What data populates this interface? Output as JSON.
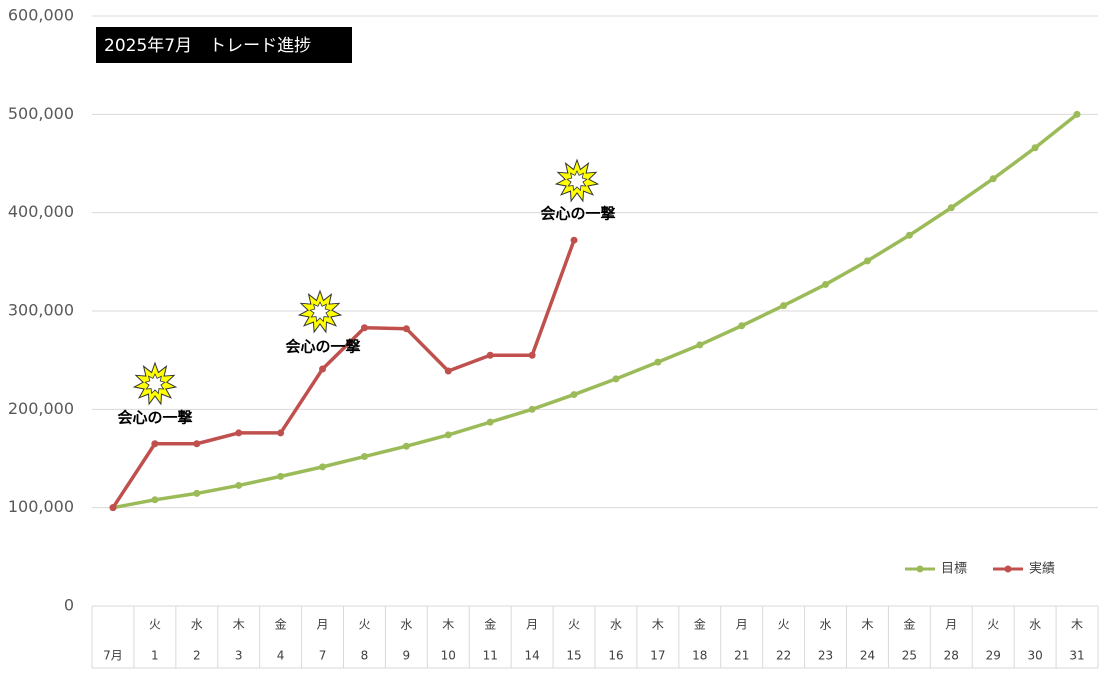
{
  "chart_data": {
    "type": "line",
    "title": "2025年7月　トレード進捗",
    "weekdays": [
      null,
      "火",
      "水",
      "木",
      "金",
      "月",
      "火",
      "水",
      "木",
      "金",
      "月",
      "火",
      "水",
      "木",
      "金",
      "月",
      "火",
      "水",
      "木",
      "金",
      "月",
      "火",
      "水",
      "木"
    ],
    "categories": [
      "7月",
      "1",
      "2",
      "3",
      "4",
      "7",
      "8",
      "9",
      "10",
      "11",
      "14",
      "15",
      "16",
      "17",
      "18",
      "21",
      "22",
      "23",
      "24",
      "25",
      "28",
      "29",
      "30",
      "31"
    ],
    "series": [
      {
        "name": "目標",
        "color": "#9bbb59",
        "values": [
          100000,
          108000,
          114500,
          122600,
          131800,
          141500,
          152000,
          162500,
          174000,
          187000,
          200000,
          215000,
          231000,
          248000,
          265500,
          285000,
          305500,
          327000,
          351000,
          377000,
          405000,
          434500,
          466000,
          500000
        ]
      },
      {
        "name": "実績",
        "color": "#c0504d",
        "values": [
          100000,
          165000,
          165000,
          176000,
          176000,
          241000,
          283000,
          282000,
          239000,
          255000,
          255000,
          372000,
          null,
          null,
          null,
          null,
          null,
          null,
          null,
          null,
          null,
          null,
          null,
          null
        ]
      }
    ],
    "annotations": [
      "会心の一撃",
      "会心の一撃",
      "会心の一撃"
    ],
    "ylim": [
      0,
      600000
    ],
    "yticks": [
      0,
      {
        "value": 100000,
        "label": "100,000"
      },
      {
        "value": 200000,
        "label": "200,000"
      },
      {
        "value": 300000,
        "label": "300,000"
      },
      {
        "value": 400000,
        "label": "400,000"
      },
      {
        "value": 500000,
        "label": "500,000"
      },
      {
        "value": 600000,
        "label": "600,000"
      }
    ],
    "grid": true,
    "legend": "bottom-right"
  }
}
